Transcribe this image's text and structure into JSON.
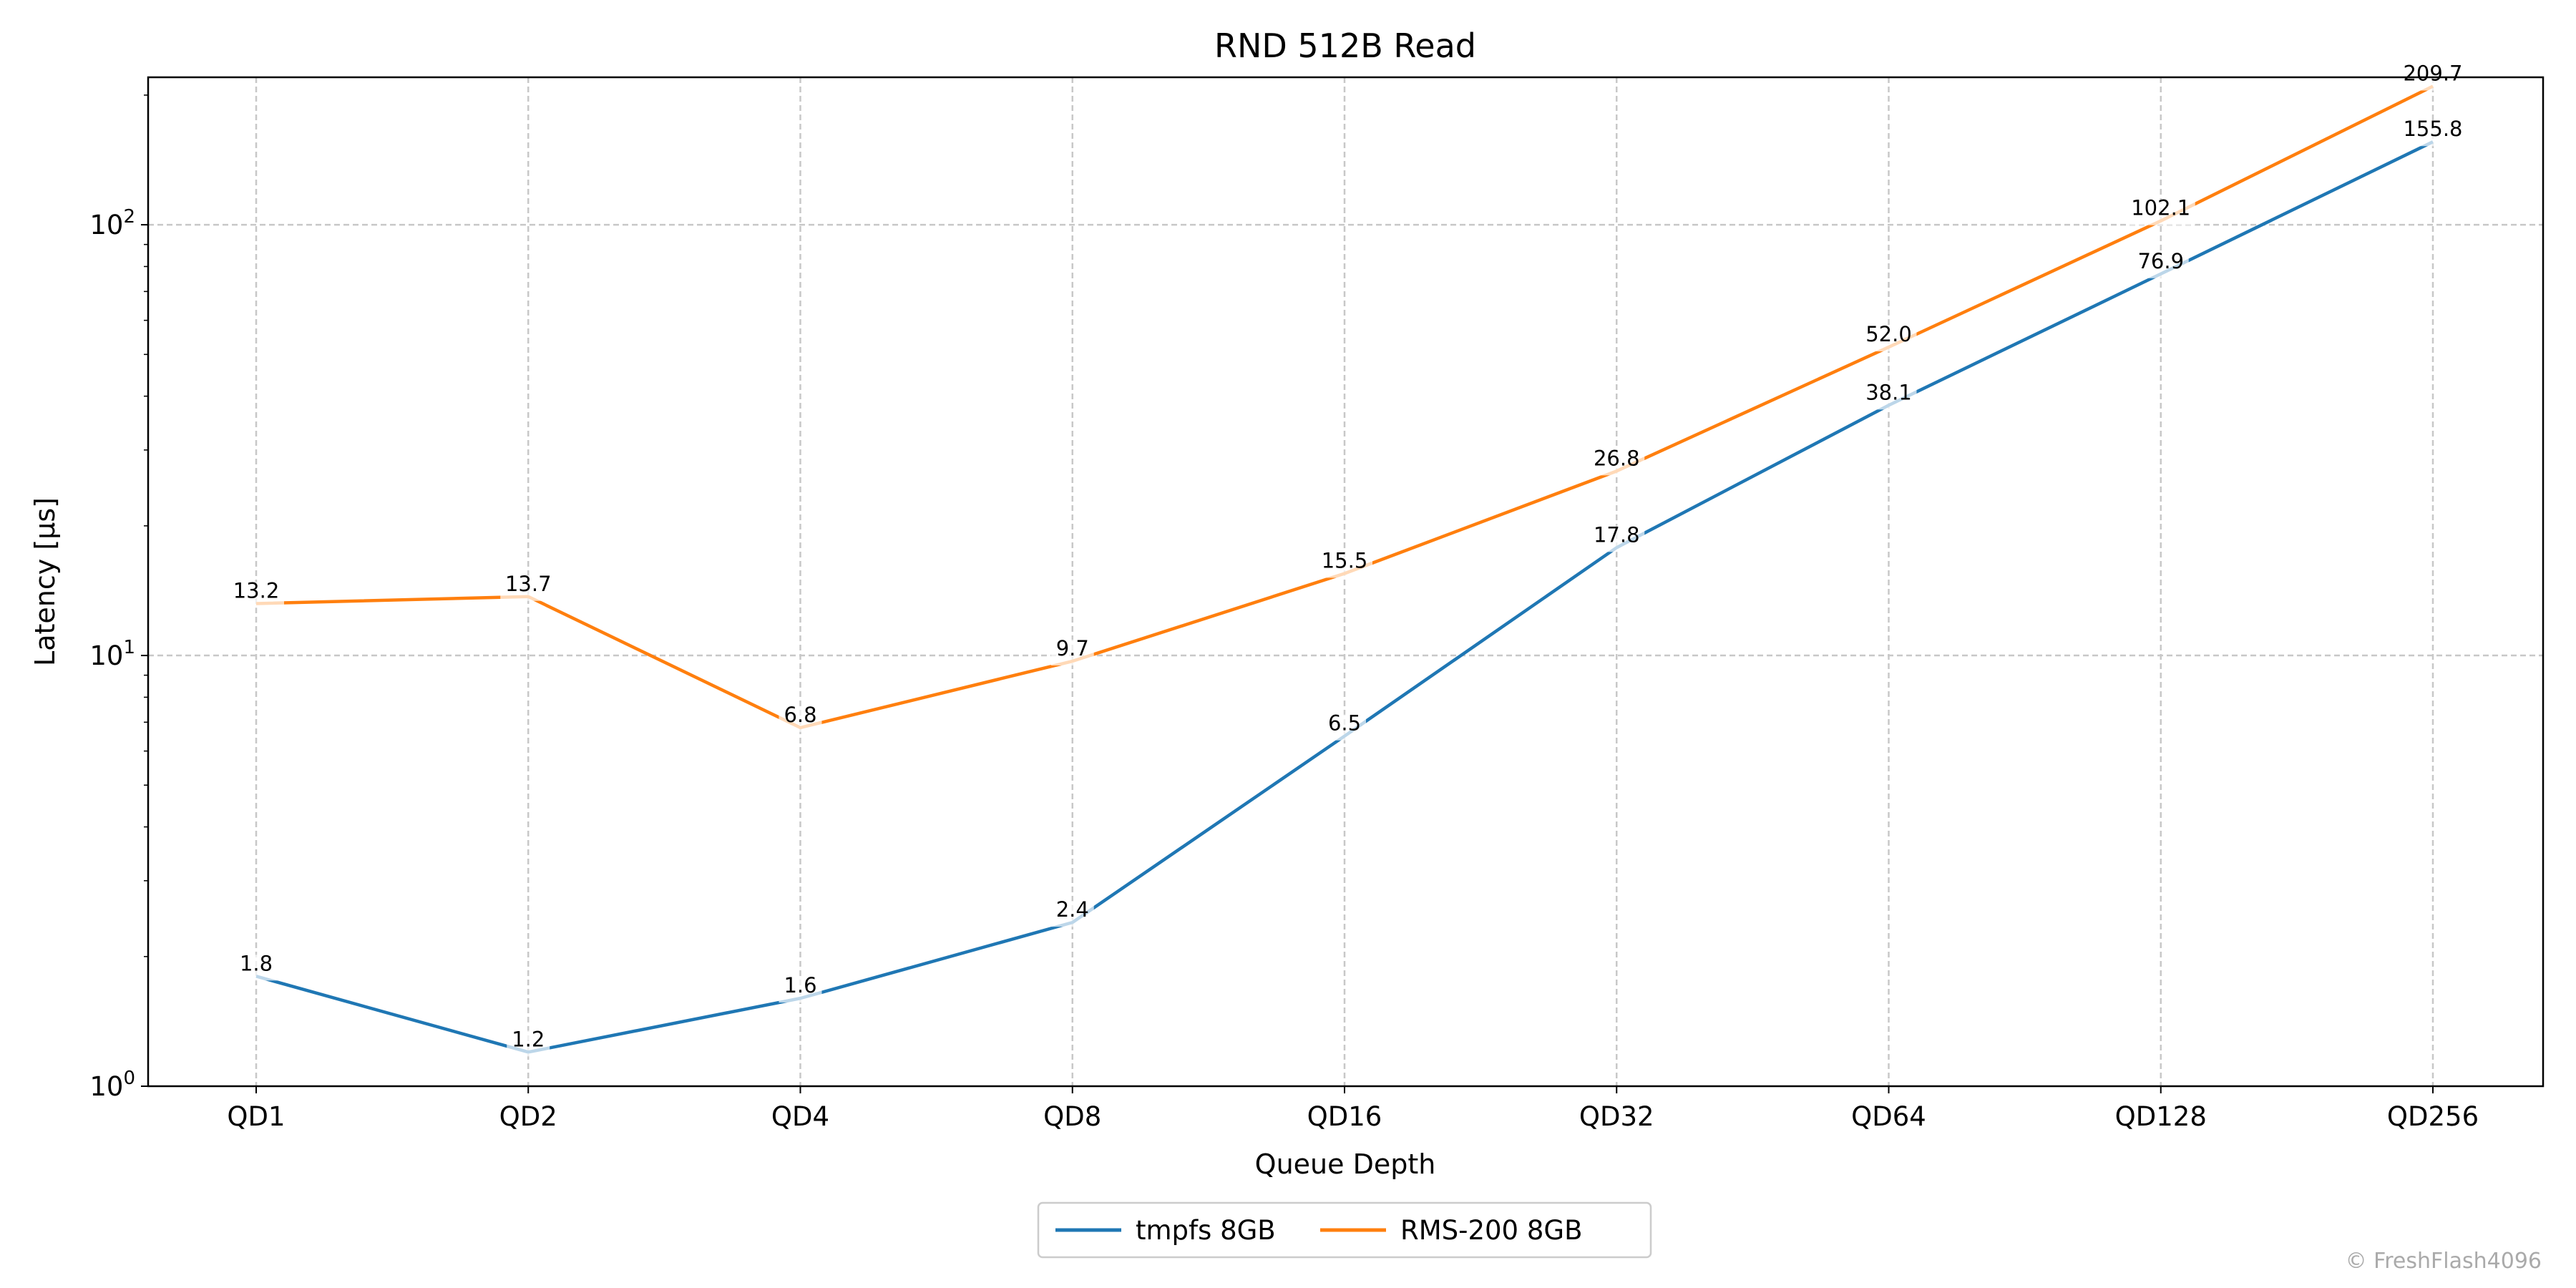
{
  "chart_data": {
    "type": "line",
    "title": "RND 512B Read",
    "xlabel": "Queue Depth",
    "ylabel": "Latency [µs]",
    "yscale": "log",
    "ylim": [
      1,
      220
    ],
    "grid": true,
    "categories": [
      "QD1",
      "QD2",
      "QD4",
      "QD8",
      "QD16",
      "QD32",
      "QD64",
      "QD128",
      "QD256"
    ],
    "yticks": [
      {
        "value": 1,
        "base": "10",
        "exp": "0"
      },
      {
        "value": 10,
        "base": "10",
        "exp": "1"
      },
      {
        "value": 100,
        "base": "10",
        "exp": "2"
      }
    ],
    "series": [
      {
        "name": "tmpfs 8GB",
        "color": "#1f77b4",
        "values": [
          1.8,
          1.2,
          1.6,
          2.4,
          6.5,
          17.8,
          38.1,
          76.9,
          155.8
        ]
      },
      {
        "name": "RMS-200 8GB",
        "color": "#ff7f0e",
        "values": [
          13.2,
          13.7,
          6.8,
          9.7,
          15.5,
          26.8,
          52.0,
          102.1,
          209.7
        ]
      }
    ],
    "legend_position": "bottom-center"
  },
  "watermark": "© FreshFlash4096"
}
